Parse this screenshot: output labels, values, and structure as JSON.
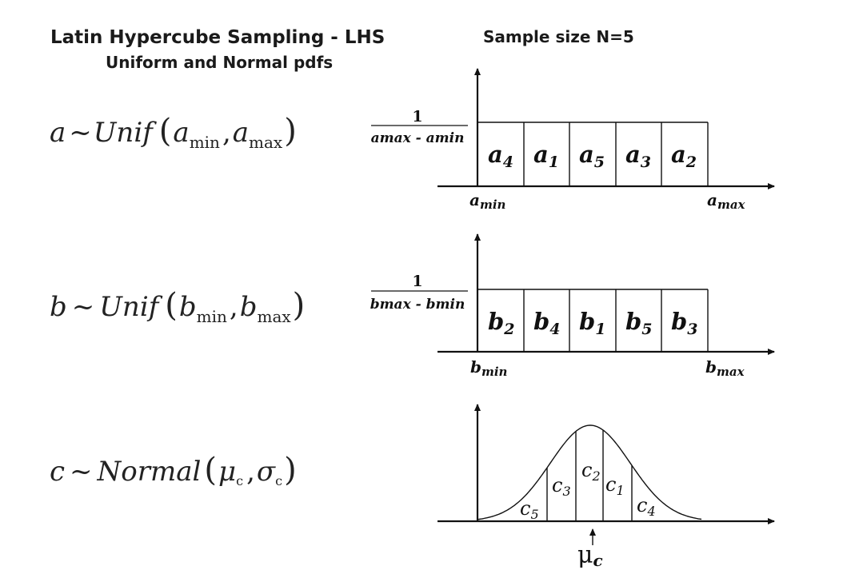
{
  "header": {
    "title": "Latin Hypercube Sampling - LHS",
    "subtitle": "Uniform and Normal pdfs",
    "sample_size": "Sample size N=5"
  },
  "distributions": [
    {
      "name": "a",
      "equation": {
        "var": "a",
        "tilde": "~",
        "family": "Unif",
        "p1_base": "a",
        "p1_sub": "min",
        "comma": ",",
        "p2_base": "a",
        "p2_sub": "max"
      },
      "density": {
        "numerator": "1",
        "denominator": "amax - amin"
      },
      "cells": [
        {
          "b": "a",
          "s": "4"
        },
        {
          "b": "a",
          "s": "1"
        },
        {
          "b": "a",
          "s": "5"
        },
        {
          "b": "a",
          "s": "3"
        },
        {
          "b": "a",
          "s": "2"
        }
      ],
      "axis_min": {
        "b": "a",
        "s": "min"
      },
      "axis_max": {
        "b": "a",
        "s": "max"
      }
    },
    {
      "name": "b",
      "equation": {
        "var": "b",
        "tilde": "~",
        "family": "Unif",
        "p1_base": "b",
        "p1_sub": "min",
        "comma": ",",
        "p2_base": "b",
        "p2_sub": "max"
      },
      "density": {
        "numerator": "1",
        "denominator": "bmax - bmin"
      },
      "cells": [
        {
          "b": "b",
          "s": "2"
        },
        {
          "b": "b",
          "s": "4"
        },
        {
          "b": "b",
          "s": "1"
        },
        {
          "b": "b",
          "s": "5"
        },
        {
          "b": "b",
          "s": "3"
        }
      ],
      "axis_min": {
        "b": "b",
        "s": "min"
      },
      "axis_max": {
        "b": "b",
        "s": "max"
      }
    },
    {
      "name": "c",
      "equation": {
        "var": "c",
        "tilde": "~",
        "family": "Normal",
        "p1_base": "μ",
        "p1_sub": "c",
        "comma": ",",
        "p2_base": "σ",
        "p2_sub": "c"
      },
      "cells": [
        {
          "b": "c",
          "s": "5"
        },
        {
          "b": "c",
          "s": "3"
        },
        {
          "b": "c",
          "s": "2"
        },
        {
          "b": "c",
          "s": "1"
        },
        {
          "b": "c",
          "s": "4"
        }
      ],
      "mean_label": {
        "b": "μ",
        "s": "c"
      }
    }
  ]
}
